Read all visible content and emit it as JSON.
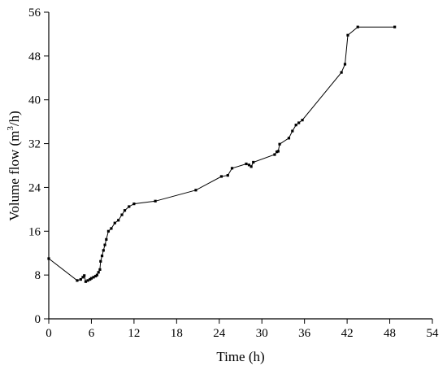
{
  "chart_data": {
    "type": "line",
    "xlabel": "Time (h)",
    "ylabel": {
      "prefix": "Volume flow (m",
      "sup": "3",
      "suffix": "/h)"
    },
    "xlim": [
      0,
      54
    ],
    "ylim": [
      0,
      56
    ],
    "xticks": [
      0,
      6,
      12,
      18,
      24,
      30,
      36,
      42,
      48,
      54
    ],
    "yticks": [
      0,
      8,
      16,
      24,
      32,
      40,
      48,
      56
    ],
    "grid": false,
    "series": [
      {
        "x": [
          0.0,
          4.0,
          4.5,
          4.8,
          5.0,
          5.2,
          5.5,
          5.8,
          6.0,
          6.3,
          6.6,
          6.8,
          7.0,
          7.2,
          7.3,
          7.5,
          7.7,
          7.9,
          8.1,
          8.4,
          8.8,
          9.3,
          9.8,
          10.3,
          10.7,
          11.3,
          12.0,
          15.0,
          20.7,
          24.3,
          25.2,
          25.8,
          27.8,
          28.2,
          28.5,
          28.8,
          31.8,
          32.1,
          32.3,
          32.5,
          33.8,
          34.3,
          34.8,
          35.2,
          35.7,
          41.2,
          41.7,
          42.1,
          43.5,
          48.7
        ],
        "y": [
          11.0,
          7.0,
          7.2,
          7.6,
          7.9,
          6.8,
          7.0,
          7.2,
          7.4,
          7.6,
          7.8,
          8.0,
          8.5,
          9.0,
          10.5,
          11.5,
          12.5,
          13.5,
          14.5,
          16.0,
          16.5,
          17.5,
          18.0,
          19.0,
          19.8,
          20.5,
          21.0,
          21.5,
          23.5,
          26.0,
          26.2,
          27.5,
          28.3,
          28.1,
          27.8,
          28.6,
          30.0,
          30.5,
          30.6,
          31.9,
          33.0,
          34.3,
          35.4,
          35.8,
          36.3,
          45.0,
          46.5,
          51.8,
          53.3,
          53.3
        ]
      }
    ]
  }
}
